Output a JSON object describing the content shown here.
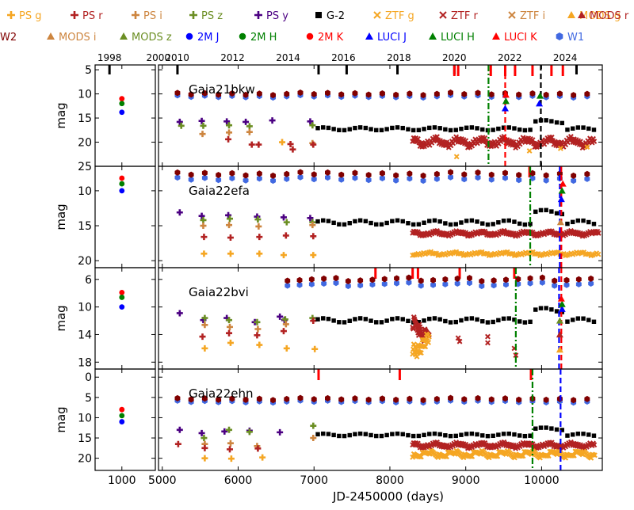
{
  "chart_data": {
    "type": "scatter",
    "title": "",
    "xlabel": "JD-2450000 (days)",
    "ylabel": "mag",
    "left_xlim": [
      600,
      1500
    ],
    "left_xticks": [
      1000
    ],
    "main_xlim": [
      4950,
      10800
    ],
    "main_xticks": [
      5000,
      6000,
      7000,
      8000,
      9000,
      10000
    ],
    "year_ticks": [
      {
        "label": "1998",
        "jd": 815
      },
      {
        "label": "2000",
        "jd": 1545
      },
      {
        "label": "2010",
        "jd": 5197
      },
      {
        "label": "2012",
        "jd": 5927
      },
      {
        "label": "2014",
        "jd": 6658
      },
      {
        "label": "2016",
        "jd": 7388
      },
      {
        "label": "2018",
        "jd": 8119
      },
      {
        "label": "2020",
        "jd": 8849
      },
      {
        "label": "2022",
        "jd": 9580
      },
      {
        "label": "2024",
        "jd": 10310
      }
    ],
    "legend": [
      {
        "label": "PS g",
        "color": "#f5a623",
        "marker": "plus"
      },
      {
        "label": "PS r",
        "color": "#b22222",
        "marker": "plus"
      },
      {
        "label": "PS i",
        "color": "#cd853f",
        "marker": "plus"
      },
      {
        "label": "PS z",
        "color": "#6b8e23",
        "marker": "plus"
      },
      {
        "label": "PS y",
        "color": "#4b0082",
        "marker": "plus"
      },
      {
        "label": "G-2",
        "color": "#000000",
        "marker": "square"
      },
      {
        "label": "ZTF g",
        "color": "#f5a623",
        "marker": "x"
      },
      {
        "label": "ZTF r",
        "color": "#b22222",
        "marker": "x"
      },
      {
        "label": "ZTF i",
        "color": "#cd853f",
        "marker": "x"
      },
      {
        "label": "MODS g",
        "color": "#f5a623",
        "marker": "triangle"
      },
      {
        "label": "MODS r",
        "color": "#b22222",
        "marker": "triangle"
      },
      {
        "label": "MODS i",
        "color": "#cd853f",
        "marker": "triangle"
      },
      {
        "label": "MODS z",
        "color": "#6b8e23",
        "marker": "triangle"
      },
      {
        "label": "2M J",
        "color": "#0000ff",
        "marker": "circle"
      },
      {
        "label": "2M H",
        "color": "#008000",
        "marker": "circle"
      },
      {
        "label": "2M K",
        "color": "#ff0000",
        "marker": "circle"
      },
      {
        "label": "LUCI J",
        "color": "#0000ff",
        "marker": "triangle"
      },
      {
        "label": "LUCI H",
        "color": "#008000",
        "marker": "triangle"
      },
      {
        "label": "LUCI K",
        "color": "#ff0000",
        "marker": "triangle"
      },
      {
        "label": "W1",
        "color": "#4169e1",
        "marker": "hexagon"
      },
      {
        "label": "W2",
        "color": "#800000",
        "marker": "hexagon"
      }
    ],
    "panels": [
      {
        "name": "Gaia21bkw",
        "ylim": [
          4,
          25
        ],
        "yticks": [
          5,
          10,
          15,
          20,
          25
        ],
        "twomass": {
          "K": 11,
          "H": 12,
          "J": 13.8
        },
        "ps": {
          "y": [
            [
              5230,
              15.8
            ],
            [
              5520,
              15.6
            ],
            [
              5850,
              15.7
            ],
            [
              6100,
              15.8
            ],
            [
              6450,
              15.5
            ],
            [
              6950,
              15.7
            ]
          ],
          "z": [
            [
              5250,
              16.6
            ],
            [
              5540,
              16.6
            ],
            [
              5880,
              16.5
            ],
            [
              6150,
              16.7
            ],
            [
              6980,
              16.5
            ]
          ],
          "i": [
            [
              5530,
              18.3
            ],
            [
              5880,
              18.0
            ],
            [
              6150,
              17.9
            ],
            [
              6980,
              20.2
            ]
          ],
          "r": [
            [
              5870,
              19.4
            ],
            [
              6180,
              20.5
            ],
            [
              6270,
              20.5
            ],
            [
              6690,
              20.4
            ],
            [
              6720,
              21.5
            ],
            [
              6990,
              20.5
            ]
          ],
          "g": [
            [
              6580,
              20.0
            ]
          ]
        },
        "wise": {
          "W1": 10.5,
          "W2": 10.0,
          "from": 5200,
          "to": 10700,
          "step": 180
        },
        "g2": {
          "from": 7050,
          "to": 10700,
          "base": 17,
          "step": 70
        },
        "ztf_r": {
          "from": 8300,
          "to": 10700,
          "base": 20,
          "step": 14,
          "amp": 1.2
        },
        "ztf_g": [
          [
            8880,
            23.0
          ],
          [
            9840,
            21.8
          ],
          [
            10250,
            21.3
          ],
          [
            10600,
            21.0
          ]
        ],
        "red_marks": [
          8850,
          8900,
          9330,
          9520,
          9650,
          9880,
          10130,
          10280
        ],
        "black_marks": [
          5200,
          7060,
          7430,
          8100,
          8850,
          10460
        ],
        "lines": [
          {
            "x": 9300,
            "color": "#008000",
            "style": "dashdot",
            "from": 4,
            "to": 25
          },
          {
            "x": 9990,
            "color": "#000000",
            "style": "dash",
            "from": 4,
            "to": 25
          },
          {
            "x": 9520,
            "color": "#ff0000",
            "style": "dash",
            "from": 4,
            "to": 25
          }
        ],
        "luci": [
          [
            9520,
            13.0,
            "#0000ff"
          ],
          [
            9530,
            11.5,
            "#008000"
          ],
          [
            9530,
            10.2,
            "#ff0000"
          ],
          [
            9970,
            12.0,
            "#0000ff"
          ],
          [
            9980,
            10.4,
            "#008000"
          ]
        ]
      },
      {
        "name": "Gaia22efa",
        "ylim": [
          6.5,
          21
        ],
        "yticks": [
          10,
          15,
          20
        ],
        "twomass": {
          "K": 8.2,
          "H": 9,
          "J": 10
        },
        "ps": {
          "y": [
            [
              5230,
              13.1
            ],
            [
              5520,
              13.6
            ],
            [
              5870,
              13.5
            ],
            [
              6250,
              13.7
            ],
            [
              6600,
              13.8
            ],
            [
              6950,
              13.9
            ]
          ],
          "z": [
            [
              5540,
              14.2
            ],
            [
              5890,
              14.0
            ],
            [
              6260,
              14.1
            ],
            [
              6640,
              14.5
            ],
            [
              6980,
              14.5
            ]
          ],
          "i": [
            [
              5540,
              15.0
            ],
            [
              5880,
              14.9
            ],
            [
              6270,
              15.1
            ],
            [
              6980,
              14.9
            ]
          ],
          "r": [
            [
              5550,
              16.6
            ],
            [
              5900,
              16.7
            ],
            [
              6280,
              16.6
            ],
            [
              6630,
              16.4
            ],
            [
              6990,
              16.5
            ]
          ],
          "g": [
            [
              5550,
              19.0
            ],
            [
              5900,
              19.0
            ],
            [
              6280,
              19.0
            ],
            [
              6600,
              19.2
            ],
            [
              6990,
              19.2
            ]
          ]
        },
        "wise": {
          "W1": 8.3,
          "W2": 7.6,
          "from": 5200,
          "to": 10700,
          "step": 180
        },
        "g2": {
          "from": 7050,
          "to": 10700,
          "base": 14.3,
          "step": 70
        },
        "ztf_r": {
          "from": 8300,
          "to": 10750,
          "base": 16.1,
          "step": 14,
          "amp": 0.4
        },
        "ztf_g": {
          "from": 8300,
          "to": 10750,
          "base": 19.0,
          "step": 24,
          "amp": 0.3
        },
        "red_marks": [
          9840,
          10250
        ],
        "black_marks": [],
        "lines": [
          {
            "x": 9850,
            "color": "#008000",
            "style": "dashdot",
            "from": 6.5,
            "to": 21
          },
          {
            "x": 10240,
            "color": "#0000ff",
            "style": "dash",
            "from": 6.5,
            "to": 21
          },
          {
            "x": 10260,
            "color": "#ff0000",
            "style": "dash",
            "from": 6.5,
            "to": 21
          }
        ],
        "luci": [
          [
            10260,
            11.2,
            "#0000ff"
          ],
          [
            10270,
            10.0,
            "#008000"
          ],
          [
            10280,
            9.0,
            "#ff0000"
          ],
          [
            10250,
            14.5,
            "#cd853f"
          ]
        ]
      },
      {
        "name": "Gaia22bvi",
        "ylim": [
          4.3,
          19
        ],
        "yticks": [
          6,
          10,
          14,
          18
        ],
        "twomass": {
          "K": 7.9,
          "H": 8.6,
          "J": 10
        },
        "ps": {
          "y": [
            [
              5230,
              10.9
            ],
            [
              5540,
              11.9
            ],
            [
              5850,
              11.6
            ],
            [
              6220,
              12.2
            ],
            [
              6550,
              11.4
            ],
            [
              6610,
              11.9
            ]
          ],
          "z": [
            [
              5560,
              11.6
            ],
            [
              5880,
              11.9
            ],
            [
              6250,
              12.2
            ],
            [
              6620,
              11.8
            ],
            [
              6980,
              11.6
            ]
          ],
          "i": [
            [
              5560,
              12.6
            ],
            [
              5890,
              12.9
            ],
            [
              6260,
              13.2
            ],
            [
              6630,
              12.5
            ]
          ],
          "r": [
            [
              5530,
              14.3
            ],
            [
              5880,
              13.8
            ],
            [
              6250,
              14.1
            ],
            [
              6600,
              13.5
            ],
            [
              6990,
              12.0
            ]
          ],
          "g": [
            [
              5560,
              16.0
            ],
            [
              5900,
              15.2
            ],
            [
              6280,
              15.5
            ],
            [
              6640,
              16.0
            ],
            [
              7010,
              16.1
            ]
          ]
        },
        "wise": {
          "W1": 6.7,
          "W2": 6.0,
          "from": 6650,
          "to": 10700,
          "step": 160
        },
        "g2": {
          "from": 7050,
          "to": 10700,
          "base": 11.7,
          "step": 70
        },
        "ztf_r": {
          "from": 8300,
          "to": 8520,
          "base": 13.2,
          "step": 8,
          "amp": 1.8
        },
        "ztf_g": {
          "from": 8300,
          "to": 8520,
          "base": 15.5,
          "step": 8,
          "amp": 1.8
        },
        "extra_ztf": [
          [
            8900,
            14.5
          ],
          [
            8920,
            15.0
          ],
          [
            9290,
            14.3
          ],
          [
            9290,
            15.2
          ],
          [
            9640,
            16.0
          ],
          [
            9660,
            17.0
          ]
        ],
        "red_marks": [
          7810,
          8300,
          8370,
          8920,
          9640
        ],
        "black_marks": [],
        "lines": [
          {
            "x": 9660,
            "color": "#008000",
            "style": "dashdot",
            "from": 4.3,
            "to": 19
          },
          {
            "x": 10230,
            "color": "#0000ff",
            "style": "dash",
            "from": 4.3,
            "to": 19
          },
          {
            "x": 10260,
            "color": "#ff0000",
            "style": "dash",
            "from": 4.3,
            "to": 19
          }
        ],
        "luci": [
          [
            10270,
            10.3,
            "#0000ff"
          ],
          [
            10270,
            9.6,
            "#008000"
          ],
          [
            10260,
            8.8,
            "#ff0000"
          ],
          [
            10240,
            16.2,
            "#f5a623"
          ],
          [
            10240,
            14.0,
            "#b22222"
          ],
          [
            10240,
            12.0,
            "#6b8e23"
          ]
        ]
      },
      {
        "name": "Gaia22ehn",
        "ylim": [
          -2,
          23
        ],
        "yticks": [
          0,
          5,
          10,
          15,
          20
        ],
        "twomass": {
          "K": 8,
          "H": 9.5,
          "J": 11
        },
        "ps": {
          "y": [
            [
              5230,
              13.0
            ],
            [
              5520,
              13.8
            ],
            [
              5820,
              13.4
            ],
            [
              6150,
              13.2
            ],
            [
              6550,
              13.6
            ]
          ],
          "z": [
            [
              5550,
              15.0
            ],
            [
              5880,
              13.0
            ],
            [
              6150,
              13.5
            ],
            [
              6990,
              12.0
            ]
          ],
          "i": [
            [
              5560,
              16.5
            ],
            [
              5900,
              16.3
            ],
            [
              6250,
              17.0
            ],
            [
              6990,
              15.0
            ]
          ],
          "r": [
            [
              5210,
              16.5
            ],
            [
              5560,
              17.5
            ],
            [
              5890,
              17.8
            ],
            [
              6260,
              17.6
            ]
          ],
          "g": [
            [
              5560,
              20.0
            ],
            [
              5910,
              20.1
            ],
            [
              6320,
              19.8
            ]
          ]
        },
        "wise": {
          "W1": 6.0,
          "W2": 5.4,
          "from": 5200,
          "to": 10700,
          "step": 180
        },
        "g2": {
          "from": 7050,
          "to": 10700,
          "base": 14,
          "step": 70
        },
        "ztf_r": {
          "from": 8300,
          "to": 10700,
          "base": 16.8,
          "step": 14,
          "amp": 0.8
        },
        "ztf_g": {
          "from": 8300,
          "to": 10700,
          "base": 19.0,
          "step": 16,
          "amp": 1.0
        },
        "red_marks": [
          7060,
          8130,
          9860
        ],
        "black_marks": [],
        "lines": [
          {
            "x": 9880,
            "color": "#008000",
            "style": "dashdot",
            "from": -2,
            "to": 23
          },
          {
            "x": 10250,
            "color": "#0000ff",
            "style": "dash",
            "from": -2,
            "to": 23
          }
        ],
        "luci": []
      }
    ]
  }
}
